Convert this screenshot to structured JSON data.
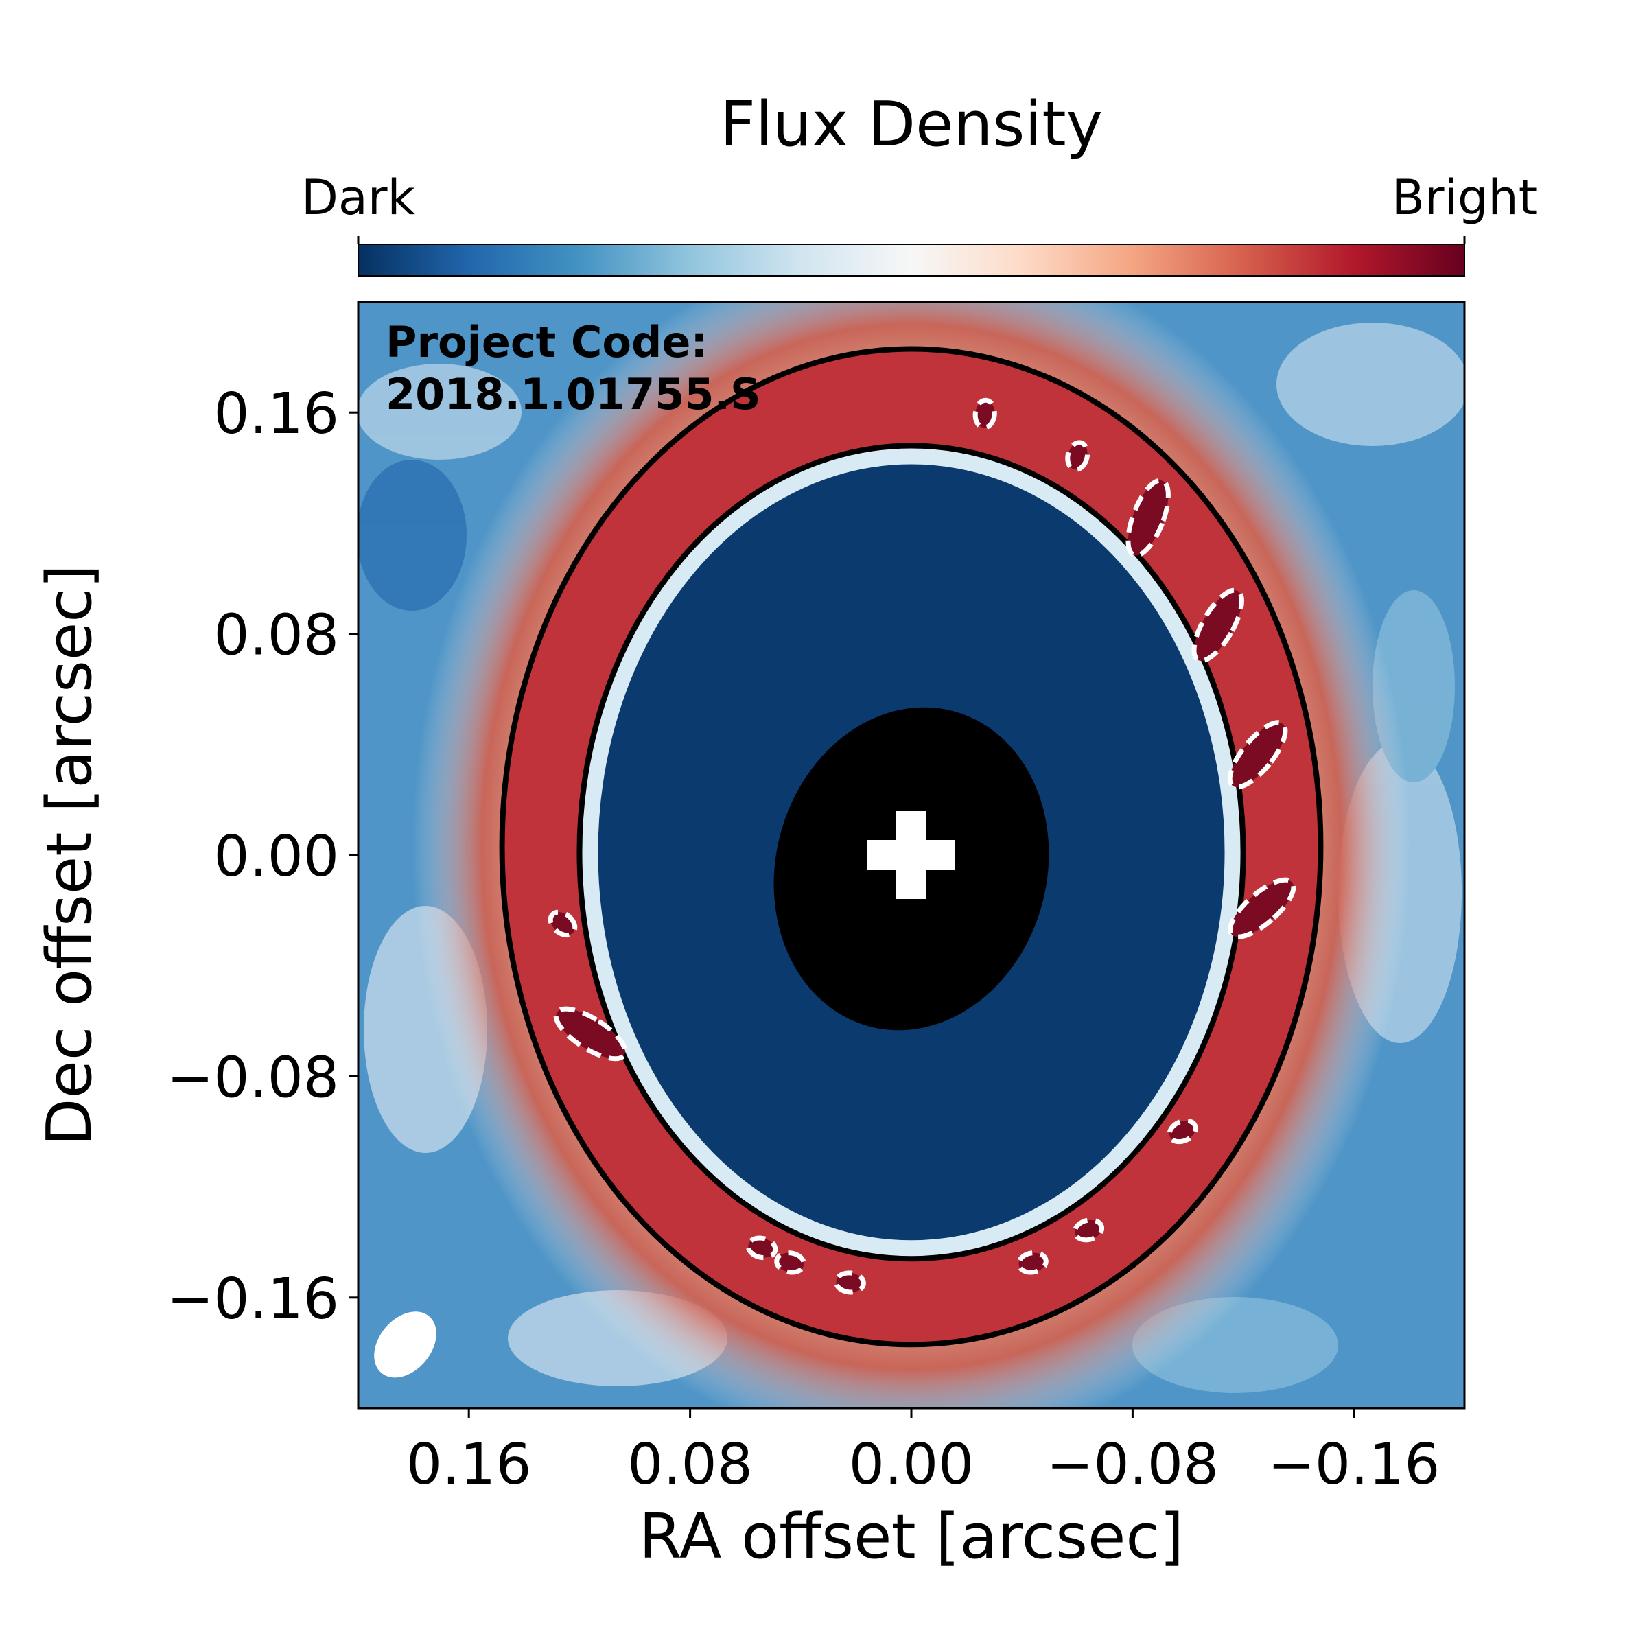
{
  "chart_data": {
    "type": "heatmap",
    "title": "Flux Density",
    "colorbar": {
      "low_label": "Dark",
      "high_label": "Bright",
      "colors": [
        "#053061",
        "#2166ac",
        "#4393c3",
        "#92c5de",
        "#d1e5f0",
        "#f7f7f7",
        "#fddbc7",
        "#f4a582",
        "#d6604d",
        "#b2182b",
        "#67001f"
      ]
    },
    "xlabel": "RA offset [arcsec]",
    "ylabel": "Dec offset [arcsec]",
    "xlim": [
      0.2,
      -0.2
    ],
    "ylim": [
      -0.2,
      0.2
    ],
    "x_ticks": [
      {
        "value": 0.16,
        "label": "0.16"
      },
      {
        "value": 0.08,
        "label": "0.08"
      },
      {
        "value": 0.0,
        "label": "0.00"
      },
      {
        "value": -0.08,
        "label": "−0.08"
      },
      {
        "value": -0.16,
        "label": "−0.16"
      }
    ],
    "y_ticks": [
      {
        "value": 0.16,
        "label": "0.16"
      },
      {
        "value": 0.08,
        "label": "0.08"
      },
      {
        "value": 0.0,
        "label": "0.00"
      },
      {
        "value": -0.08,
        "label": "−0.08"
      },
      {
        "value": -0.16,
        "label": "−0.16"
      }
    ],
    "annotation": {
      "line1": "Project Code:",
      "line2": "2018.1.01755.S"
    },
    "ring": {
      "center": [
        -0.0,
        0.003
      ],
      "peak_radius_x": 0.128,
      "peak_radius_y": 0.16,
      "inner_contour_rx": 0.118,
      "inner_contour_ry": 0.145,
      "outer_contour_rx": 0.148,
      "outer_contour_ry": 0.18
    },
    "masked_center": {
      "rx": 0.049,
      "ry": 0.059,
      "color": "#000000"
    },
    "star_marker": {
      "x": 0.0,
      "y": 0.0,
      "symbol": "plus",
      "color": "#ffffff"
    },
    "beam": {
      "x": 0.183,
      "y": -0.177,
      "color": "#ffffff"
    }
  }
}
